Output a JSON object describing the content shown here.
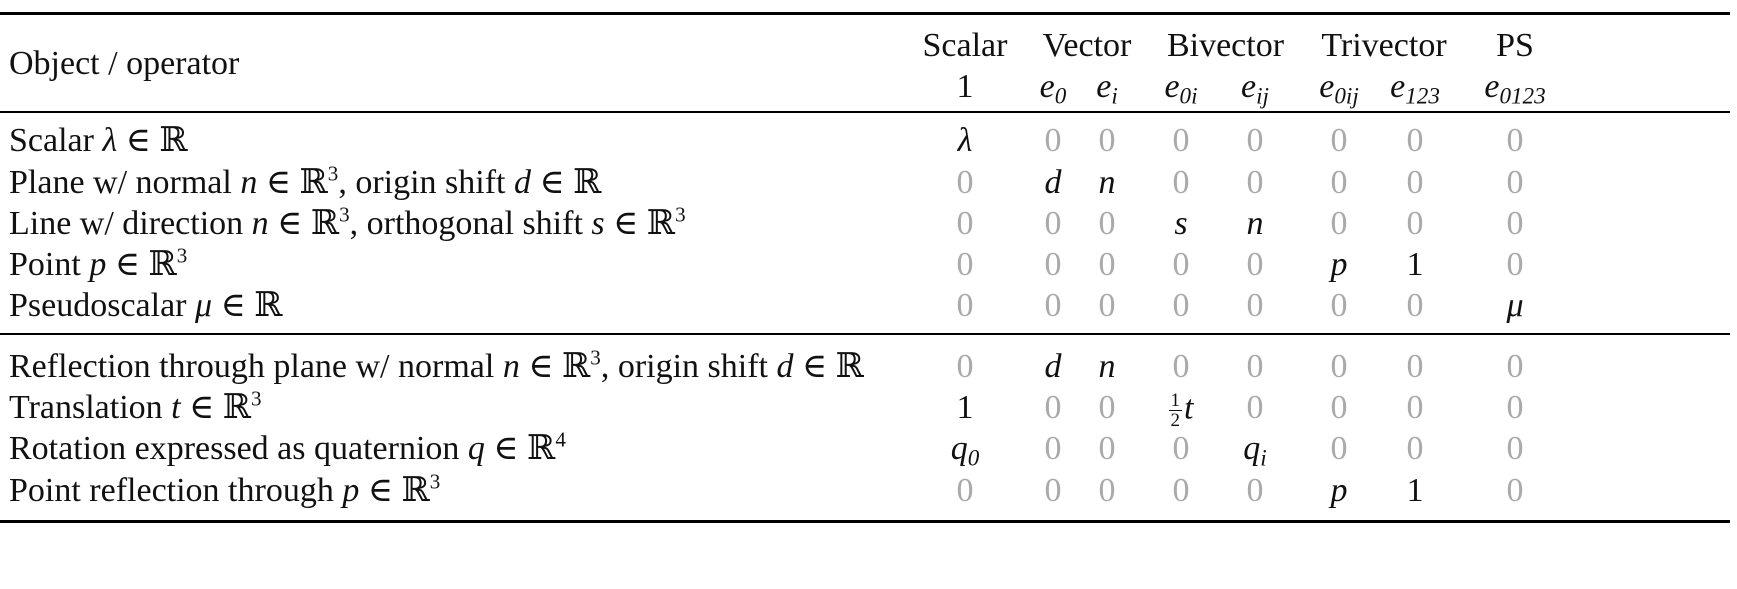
{
  "header": {
    "first_col": "Object / operator",
    "groups": [
      {
        "name": "Scalar"
      },
      {
        "name": "Vector"
      },
      {
        "name": "Bivector"
      },
      {
        "name": "Trivector"
      },
      {
        "name": "PS"
      }
    ],
    "basis": [
      {
        "base": "1",
        "sub": ""
      },
      {
        "base": "e",
        "sub": "0"
      },
      {
        "base": "e",
        "sub": "i"
      },
      {
        "base": "e",
        "sub": "0i"
      },
      {
        "base": "e",
        "sub": "ij"
      },
      {
        "base": "e",
        "sub": "0ij"
      },
      {
        "base": "e",
        "sub": "123"
      },
      {
        "base": "e",
        "sub": "0123"
      }
    ]
  },
  "objects": [
    {
      "label": [
        {
          "t": "Scalar "
        },
        {
          "m": "λ"
        },
        {
          "t": " ∈ ℝ"
        }
      ],
      "cells": [
        {
          "m": "λ"
        },
        {
          "z": "0"
        },
        {
          "z": "0"
        },
        {
          "z": "0"
        },
        {
          "z": "0"
        },
        {
          "z": "0"
        },
        {
          "z": "0"
        },
        {
          "z": "0"
        }
      ]
    },
    {
      "label": [
        {
          "t": "Plane w/ normal "
        },
        {
          "m": "n"
        },
        {
          "t": " ∈ ℝ"
        },
        {
          "s": "3"
        },
        {
          "t": ", origin shift "
        },
        {
          "m": "d"
        },
        {
          "t": " ∈ ℝ"
        }
      ],
      "cells": [
        {
          "z": "0"
        },
        {
          "m": "d"
        },
        {
          "m": "n"
        },
        {
          "z": "0"
        },
        {
          "z": "0"
        },
        {
          "z": "0"
        },
        {
          "z": "0"
        },
        {
          "z": "0"
        }
      ]
    },
    {
      "label": [
        {
          "t": "Line w/ direction "
        },
        {
          "m": "n"
        },
        {
          "t": " ∈ ℝ"
        },
        {
          "s": "3"
        },
        {
          "t": ", orthogonal shift "
        },
        {
          "m": "s"
        },
        {
          "t": " ∈ ℝ"
        },
        {
          "s": "3"
        }
      ],
      "cells": [
        {
          "z": "0"
        },
        {
          "z": "0"
        },
        {
          "z": "0"
        },
        {
          "m": "s"
        },
        {
          "m": "n"
        },
        {
          "z": "0"
        },
        {
          "z": "0"
        },
        {
          "z": "0"
        }
      ]
    },
    {
      "label": [
        {
          "t": "Point "
        },
        {
          "m": "p"
        },
        {
          "t": " ∈ ℝ"
        },
        {
          "s": "3"
        }
      ],
      "cells": [
        {
          "z": "0"
        },
        {
          "z": "0"
        },
        {
          "z": "0"
        },
        {
          "z": "0"
        },
        {
          "z": "0"
        },
        {
          "m": "p"
        },
        {
          "t": "1"
        },
        {
          "z": "0"
        }
      ]
    },
    {
      "label": [
        {
          "t": "Pseudoscalar "
        },
        {
          "m": "μ"
        },
        {
          "t": " ∈ ℝ"
        }
      ],
      "cells": [
        {
          "z": "0"
        },
        {
          "z": "0"
        },
        {
          "z": "0"
        },
        {
          "z": "0"
        },
        {
          "z": "0"
        },
        {
          "z": "0"
        },
        {
          "z": "0"
        },
        {
          "m": "μ"
        }
      ]
    }
  ],
  "operators": [
    {
      "label": [
        {
          "t": "Reflection through plane w/ normal "
        },
        {
          "m": "n"
        },
        {
          "t": " ∈ ℝ"
        },
        {
          "s": "3"
        },
        {
          "t": ", origin shift "
        },
        {
          "m": "d"
        },
        {
          "t": " ∈ ℝ"
        }
      ],
      "cells": [
        {
          "z": "0"
        },
        {
          "m": "d"
        },
        {
          "m": "n"
        },
        {
          "z": "0"
        },
        {
          "z": "0"
        },
        {
          "z": "0"
        },
        {
          "z": "0"
        },
        {
          "z": "0"
        }
      ]
    },
    {
      "label": [
        {
          "t": "Translation "
        },
        {
          "m": "t"
        },
        {
          "t": " ∈ ℝ"
        },
        {
          "s": "3"
        }
      ],
      "cells": [
        {
          "t": "1"
        },
        {
          "z": "0"
        },
        {
          "z": "0"
        },
        {
          "f": [
            "1",
            "2"
          ],
          "m": "t"
        },
        {
          "z": "0"
        },
        {
          "z": "0"
        },
        {
          "z": "0"
        },
        {
          "z": "0"
        }
      ]
    },
    {
      "label": [
        {
          "t": "Rotation expressed as quaternion "
        },
        {
          "m": "q"
        },
        {
          "t": " ∈ ℝ"
        },
        {
          "s": "4"
        }
      ],
      "cells": [
        {
          "m": "q",
          "b": "0"
        },
        {
          "z": "0"
        },
        {
          "z": "0"
        },
        {
          "z": "0"
        },
        {
          "m": "q",
          "b": "i"
        },
        {
          "z": "0"
        },
        {
          "z": "0"
        },
        {
          "z": "0"
        }
      ]
    },
    {
      "label": [
        {
          "t": "Point reflection through "
        },
        {
          "m": "p"
        },
        {
          "t": " ∈ ℝ"
        },
        {
          "s": "3"
        }
      ],
      "cells": [
        {
          "z": "0"
        },
        {
          "z": "0"
        },
        {
          "z": "0"
        },
        {
          "z": "0"
        },
        {
          "z": "0"
        },
        {
          "m": "p"
        },
        {
          "t": "1"
        },
        {
          "z": "0"
        }
      ]
    }
  ]
}
